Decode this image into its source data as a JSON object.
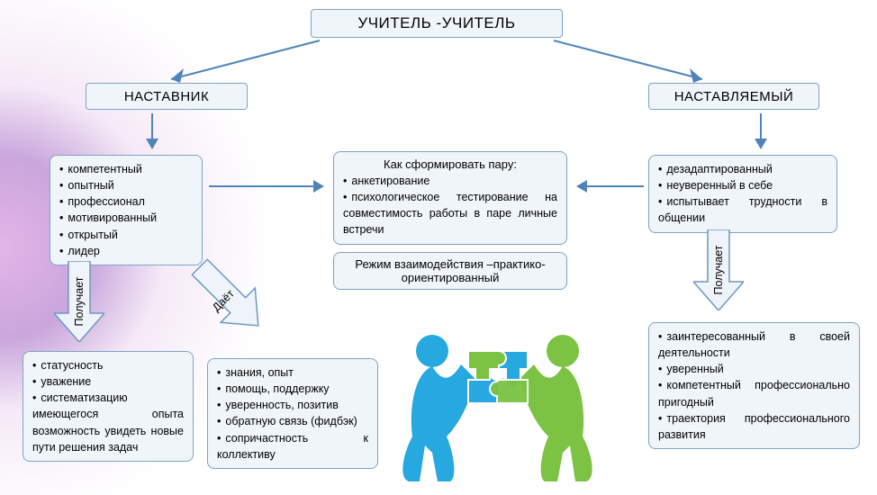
{
  "title": "УЧИТЕЛЬ -УЧИТЕЛЬ",
  "mentor": {
    "label": "НАСТАВНИК",
    "qualities": [
      "компетентный",
      "опытный",
      "профессионал",
      "мотивированный",
      "открытый",
      "лидер"
    ],
    "receives_label": "Получает",
    "receives": [
      "статусность",
      "уважение",
      "систематизацию имеющегося опыта возможность увидеть новые пути решения задач"
    ],
    "gives_label": "Даёт",
    "gives": [
      "знания, опыт",
      "помощь, поддержку",
      "уверенность, позитив",
      "обратную связь (фидбэк)",
      "сопричастность к коллективу"
    ]
  },
  "mentee": {
    "label": "НАСТАВЛЯЕМЫЙ",
    "qualities": [
      "дезадаптированный",
      "неуверенный в себе",
      "испытывает трудности в общении"
    ],
    "receives_label": "Получает",
    "receives": [
      "заинтересованный в своей деятельности",
      "уверенный",
      "компетентный профессионально пригодный",
      "траектория профессионального развития"
    ]
  },
  "pairing": {
    "title": "Как сформировать пару:",
    "items": [
      "анкетирование",
      "психологическое тестирование на совместимость работы в паре личные встречи"
    ]
  },
  "mode": "Режим взаимодействия –практико-ориентированный",
  "style": {
    "box_bg": "#f0f5fa",
    "box_border": "#7da3c4",
    "arrow_color": "#5084b8",
    "fat_arrow_fill": "#eef4fa",
    "fat_arrow_stroke": "#6c98c2",
    "puzzle_blue": "#28a8e0",
    "puzzle_green": "#7cc243",
    "title_fontsize": 17,
    "bullet_fontsize": 12.5
  }
}
